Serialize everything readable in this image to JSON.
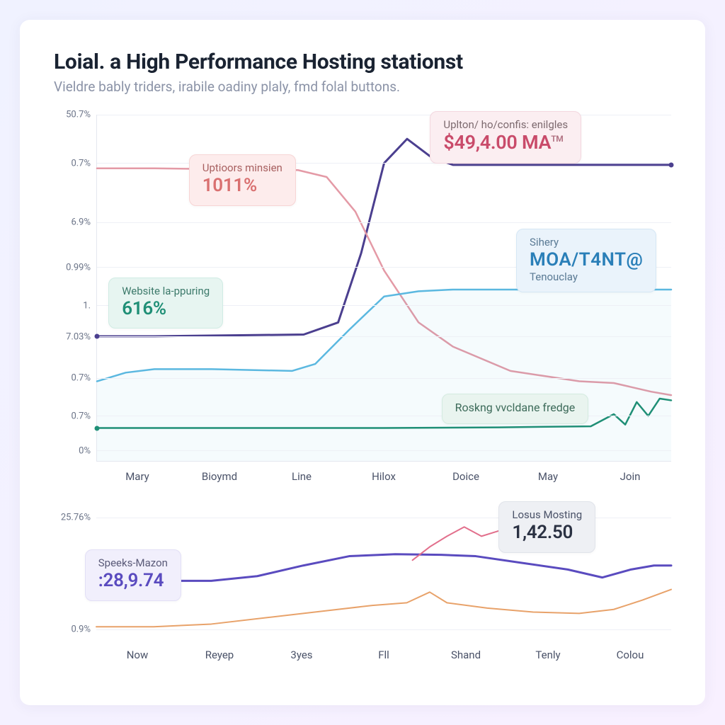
{
  "header": {
    "title": "Loial. a High Performance Hosting stationst",
    "subtitle": "Vieldre bably triders, irabile oadiny plaly, fmd folal buttons."
  },
  "chart1": {
    "type": "line",
    "background_color": "#ffffff",
    "grid_color": "#eef0f6",
    "axis_color": "#e4e7ef",
    "tick_color": "#6b7488",
    "tick_fontsize": 13,
    "x_labels": [
      "Mary",
      "Bioymd",
      "Line",
      "Hilox",
      "Doice",
      "May",
      "Join"
    ],
    "y_ticks": [
      {
        "label": "50.7%",
        "pos": 0.0
      },
      {
        "label": "0.7%",
        "pos": 0.14
      },
      {
        "label": "6.9%",
        "pos": 0.31
      },
      {
        "label": "0.99%",
        "pos": 0.44
      },
      {
        "label": "1.",
        "pos": 0.55
      },
      {
        "label": "7.03%",
        "pos": 0.64
      },
      {
        "label": "0.7%",
        "pos": 0.76
      },
      {
        "label": "0.7%",
        "pos": 0.87
      },
      {
        "label": "0%",
        "pos": 0.97
      }
    ],
    "series": [
      {
        "name": "purple",
        "color": "#4b3f8f",
        "width": 3,
        "points": [
          [
            0,
            0.64
          ],
          [
            0.1,
            0.64
          ],
          [
            0.36,
            0.635
          ],
          [
            0.42,
            0.6
          ],
          [
            0.46,
            0.4
          ],
          [
            0.5,
            0.14
          ],
          [
            0.54,
            0.07
          ],
          [
            0.58,
            0.12
          ],
          [
            0.62,
            0.145
          ],
          [
            1.0,
            0.145
          ]
        ],
        "end_dot": true,
        "start_dot": true
      },
      {
        "name": "pink",
        "color": "#e49aa6",
        "width": 2.5,
        "points": [
          [
            0,
            0.155
          ],
          [
            0.1,
            0.155
          ],
          [
            0.35,
            0.16
          ],
          [
            0.4,
            0.18
          ],
          [
            0.45,
            0.28
          ],
          [
            0.5,
            0.45
          ],
          [
            0.56,
            0.6
          ],
          [
            0.62,
            0.67
          ],
          [
            0.72,
            0.74
          ],
          [
            0.84,
            0.77
          ],
          [
            0.9,
            0.775
          ],
          [
            0.965,
            0.8
          ],
          [
            1.0,
            0.81
          ]
        ]
      },
      {
        "name": "sky",
        "color": "#5bb8e0",
        "width": 2.5,
        "fill": "rgba(91,184,224,0.06)",
        "points": [
          [
            0,
            0.77
          ],
          [
            0.05,
            0.745
          ],
          [
            0.1,
            0.735
          ],
          [
            0.2,
            0.735
          ],
          [
            0.34,
            0.74
          ],
          [
            0.38,
            0.72
          ],
          [
            0.44,
            0.62
          ],
          [
            0.5,
            0.525
          ],
          [
            0.56,
            0.51
          ],
          [
            0.62,
            0.505
          ],
          [
            1.0,
            0.505
          ]
        ]
      },
      {
        "name": "teal",
        "color": "#1f8f76",
        "width": 2.5,
        "points": [
          [
            0,
            0.905
          ],
          [
            0.5,
            0.905
          ],
          [
            0.7,
            0.903
          ],
          [
            0.86,
            0.9
          ],
          [
            0.9,
            0.865
          ],
          [
            0.92,
            0.895
          ],
          [
            0.94,
            0.83
          ],
          [
            0.96,
            0.87
          ],
          [
            0.98,
            0.82
          ],
          [
            1.0,
            0.825
          ]
        ],
        "start_dot": true
      }
    ],
    "badges": [
      {
        "style": "pink",
        "left_pct": 16,
        "top_pct": 11.5,
        "label": "Uptioors minsien",
        "value": "1011%"
      },
      {
        "style": "teal",
        "left_pct": 2,
        "top_pct": 47,
        "label": "Website la-ppuring",
        "value": "616%"
      },
      {
        "style": "pink2",
        "left_pct": 58,
        "top_pct": -1,
        "label": "Uplton/ ho/confis: enilgles",
        "value": "$49,4.00 MA",
        "tm": true
      },
      {
        "style": "blue",
        "left_pct": 73,
        "top_pct": 33,
        "label": "Sihery",
        "value": "MOA/T4NT@",
        "sub": "Tenouclay"
      },
      {
        "style": "green",
        "left_pct": 60,
        "top_pct": 80.5,
        "label": "Roskng vvcldane fredge"
      }
    ]
  },
  "chart2": {
    "type": "line",
    "x_labels": [
      "Now",
      "Reyep",
      "3yes",
      "Fll",
      "Shand",
      "Tenly",
      "Colou"
    ],
    "y_ticks": [
      {
        "label": "25.76%",
        "pos": 0.08
      },
      {
        "label": "0.9%",
        "pos": 0.92
      }
    ],
    "series": [
      {
        "name": "purple2",
        "color": "#5a4bbf",
        "width": 3,
        "points": [
          [
            0,
            0.55
          ],
          [
            0.06,
            0.56
          ],
          [
            0.12,
            0.555
          ],
          [
            0.2,
            0.555
          ],
          [
            0.28,
            0.52
          ],
          [
            0.36,
            0.44
          ],
          [
            0.44,
            0.37
          ],
          [
            0.52,
            0.355
          ],
          [
            0.6,
            0.36
          ],
          [
            0.66,
            0.37
          ],
          [
            0.74,
            0.42
          ],
          [
            0.82,
            0.47
          ],
          [
            0.88,
            0.53
          ],
          [
            0.93,
            0.47
          ],
          [
            0.97,
            0.44
          ],
          [
            1.0,
            0.44
          ]
        ]
      },
      {
        "name": "pink2s",
        "color": "#e26f8c",
        "width": 2,
        "points": [
          [
            0.55,
            0.4
          ],
          [
            0.58,
            0.3
          ],
          [
            0.61,
            0.22
          ],
          [
            0.64,
            0.15
          ],
          [
            0.67,
            0.22
          ],
          [
            0.7,
            0.18
          ],
          [
            0.73,
            0.26
          ],
          [
            0.745,
            0.3
          ]
        ]
      },
      {
        "name": "orange",
        "color": "#e8a26a",
        "width": 2,
        "points": [
          [
            0,
            0.9
          ],
          [
            0.1,
            0.9
          ],
          [
            0.2,
            0.88
          ],
          [
            0.3,
            0.83
          ],
          [
            0.4,
            0.78
          ],
          [
            0.48,
            0.74
          ],
          [
            0.54,
            0.72
          ],
          [
            0.58,
            0.64
          ],
          [
            0.61,
            0.72
          ],
          [
            0.68,
            0.76
          ],
          [
            0.76,
            0.79
          ],
          [
            0.84,
            0.8
          ],
          [
            0.9,
            0.77
          ],
          [
            0.95,
            0.7
          ],
          [
            1.0,
            0.62
          ]
        ]
      }
    ],
    "badges": [
      {
        "style": "violet",
        "left_pct": -2,
        "top_pct": 32,
        "label": "Speeks-Mazon",
        "value": ":28,9.74"
      },
      {
        "style": "gray",
        "left_pct": 70,
        "top_pct": -4,
        "label": "Losus Mosting",
        "value": "1,42.50"
      }
    ]
  }
}
